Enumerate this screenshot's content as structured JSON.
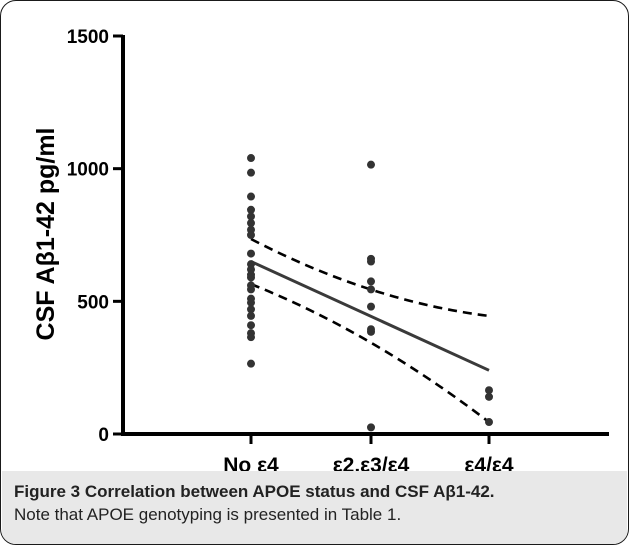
{
  "chart_data": {
    "type": "scatter",
    "ylabel": "CSF Aβ1-42 pg/ml",
    "xlabel": "",
    "ylim": [
      0,
      1500
    ],
    "yticks": [
      0,
      500,
      1000,
      1500
    ],
    "categories": [
      "No ε4",
      "ε2,ε3/ε4",
      "ε4/ε4"
    ],
    "series": [
      {
        "category": "No ε4",
        "values": [
          1040,
          985,
          895,
          845,
          820,
          795,
          770,
          750,
          680,
          640,
          620,
          600,
          590,
          560,
          545,
          510,
          495,
          470,
          445,
          410,
          380,
          365,
          265
        ]
      },
      {
        "category": "ε2,ε3/ε4",
        "values": [
          1015,
          660,
          650,
          575,
          545,
          480,
          395,
          385,
          25
        ]
      },
      {
        "category": "ε4/ε4",
        "values": [
          165,
          140,
          45
        ]
      }
    ],
    "regression": {
      "fit": [
        650,
        445,
        240
      ],
      "ci_upper": [
        735,
        545,
        445
      ],
      "ci_lower": [
        565,
        345,
        45
      ]
    },
    "grid": false,
    "legend": "none"
  },
  "caption": {
    "label": "Figure 3",
    "title": "Correlation between APOE status and CSF Aβ1-42.",
    "note": "Note that APOE genotyping is presented in Table 1."
  },
  "colors": {
    "points": "#333333",
    "fit_line": "#3a3a3a",
    "axis": "#000000",
    "caption_bg": "#e8e8e8"
  }
}
